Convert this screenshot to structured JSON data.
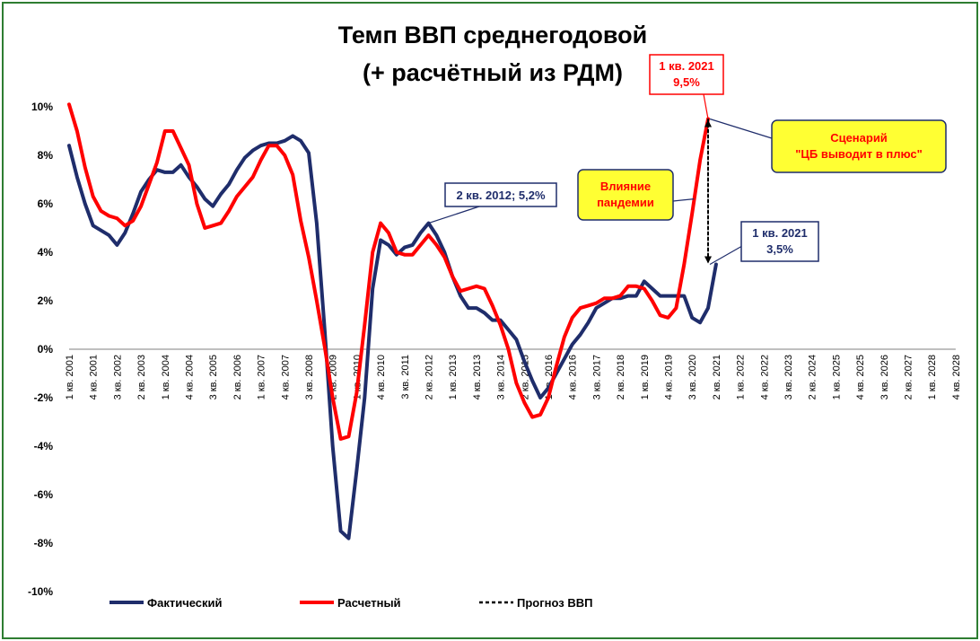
{
  "chart_data": {
    "type": "line",
    "title": [
      "Темп ВВП среднегодовой",
      "(+ расчётный из РДМ)"
    ],
    "xlabel": "",
    "ylabel": "",
    "ylim": [
      -0.1,
      0.1
    ],
    "y_ticks": [
      "-10%",
      "-8%",
      "-6%",
      "-4%",
      "-2%",
      "0%",
      "2%",
      "4%",
      "6%",
      "8%",
      "10%"
    ],
    "x_tick_labels": [
      "1 кв. 2001",
      "4 кв. 2001",
      "3 кв. 2002",
      "2 кв. 2003",
      "1 кв. 2004",
      "4 кв. 2004",
      "3 кв. 2005",
      "2 кв. 2006",
      "1 кв. 2007",
      "4 кв. 2007",
      "3 кв. 2008",
      "2 кв. 2009",
      "1 кв. 2010",
      "4 кв. 2010",
      "3 кв. 2011",
      "2 кв. 2012",
      "1 кв. 2013",
      "4 кв. 2013",
      "3 кв. 2014",
      "2 кв. 2015",
      "1 кв. 2016",
      "4 кв. 2016",
      "3 кв. 2017",
      "2 кв. 2018",
      "1 кв. 2019",
      "4 кв. 2019",
      "3 кв. 2020",
      "2 кв. 2021",
      "1 кв. 2022",
      "4 кв. 2022",
      "3 кв. 2023",
      "2 кв. 2024",
      "1 кв. 2025",
      "4 кв. 2025",
      "3 кв. 2026",
      "2 кв. 2027",
      "1 кв. 2028",
      "4 кв. 2028"
    ],
    "grid": false,
    "legend_position": "bottom",
    "series": [
      {
        "name": "Фактический",
        "color": "#1f2d6b",
        "style": "solid",
        "values": [
          0.084,
          0.071,
          0.06,
          0.051,
          0.049,
          0.047,
          0.043,
          0.048,
          0.056,
          0.065,
          0.07,
          0.074,
          0.073,
          0.073,
          0.076,
          0.071,
          0.067,
          0.062,
          0.059,
          0.064,
          0.068,
          0.074,
          0.079,
          0.082,
          0.084,
          0.085,
          0.085,
          0.086,
          0.088,
          0.086,
          0.081,
          0.052,
          0.008,
          -0.04,
          -0.075,
          -0.078,
          -0.05,
          -0.02,
          0.025,
          0.045,
          0.043,
          0.039,
          0.042,
          0.043,
          0.048,
          0.052,
          0.047,
          0.04,
          0.03,
          0.022,
          0.017,
          0.017,
          0.015,
          0.012,
          0.012,
          0.008,
          0.004,
          -0.005,
          -0.013,
          -0.02,
          -0.016,
          -0.01,
          -0.004,
          0.002,
          0.006,
          0.011,
          0.017,
          0.019,
          0.021,
          0.021,
          0.022,
          0.022,
          0.028,
          0.025,
          0.022,
          0.022,
          0.022,
          0.022,
          0.013,
          0.011,
          0.017,
          0.035
        ]
      },
      {
        "name": "Расчетный",
        "color": "#ff0000",
        "style": "solid",
        "values": [
          0.101,
          0.09,
          0.075,
          0.063,
          0.057,
          0.055,
          0.054,
          0.051,
          0.053,
          0.059,
          0.068,
          0.077,
          0.09,
          0.09,
          0.083,
          0.076,
          0.06,
          0.05,
          0.051,
          0.052,
          0.057,
          0.063,
          0.067,
          0.071,
          0.078,
          0.084,
          0.084,
          0.08,
          0.072,
          0.053,
          0.038,
          0.02,
          0.001,
          -0.02,
          -0.037,
          -0.036,
          -0.018,
          0.01,
          0.04,
          0.052,
          0.048,
          0.04,
          0.039,
          0.039,
          0.043,
          0.047,
          0.043,
          0.038,
          0.03,
          0.024,
          0.025,
          0.026,
          0.025,
          0.018,
          0.01,
          0.0,
          -0.014,
          -0.022,
          -0.028,
          -0.027,
          -0.02,
          -0.007,
          0.005,
          0.013,
          0.017,
          0.018,
          0.019,
          0.021,
          0.021,
          0.022,
          0.026,
          0.026,
          0.025,
          0.02,
          0.014,
          0.013,
          0.017,
          0.035,
          0.056,
          0.078,
          0.095
        ]
      },
      {
        "name": "Прогноз ВВП",
        "color": "#000000",
        "style": "dashed",
        "x_index": [
          80,
          80
        ],
        "values": [
          0.095,
          0.035
        ]
      }
    ],
    "annotations": [
      {
        "text": "2 кв. 2012; 5,2%",
        "x_index": 45,
        "y": 0.052,
        "color": "#1f2d6b"
      },
      {
        "text": [
          "1 кв. 2021",
          "9,5%"
        ],
        "x_index": 80,
        "y": 0.095,
        "color": "#ff0000"
      },
      {
        "text": [
          "1 кв. 2021",
          "3,5%"
        ],
        "x_index": 80,
        "y": 0.035,
        "color": "#1f2d6b"
      },
      {
        "text": [
          "Влияние",
          "пандемии"
        ],
        "x_index": 78,
        "y": 0.062,
        "color": "#ff0000",
        "fill": "#ffff33"
      },
      {
        "text": [
          "Сценарий",
          "\"ЦБ выводит в плюс\""
        ],
        "x_index": 80,
        "y": 0.095,
        "color": "#ff0000",
        "fill": "#ffff33"
      }
    ]
  }
}
